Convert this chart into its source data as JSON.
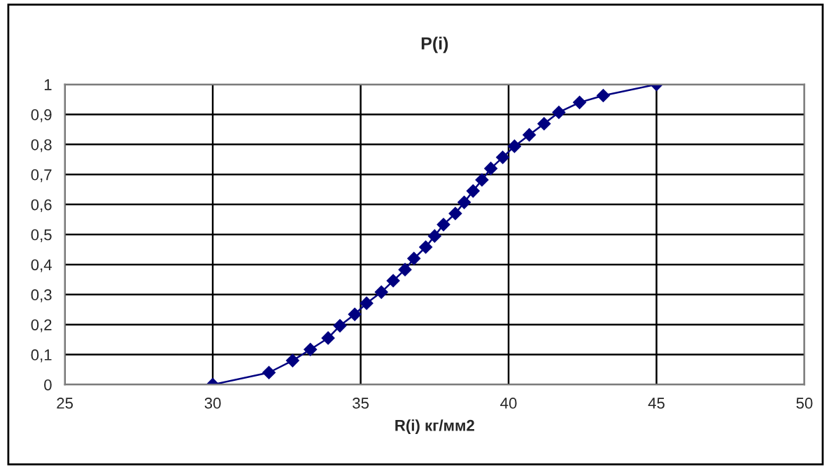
{
  "chart_data": {
    "type": "line",
    "title": "P(i)",
    "xlabel": "R(i) кг/мм2",
    "series": [
      {
        "color": "#000080",
        "x": [
          30,
          31.9,
          32.7,
          33.3,
          33.9,
          34.3,
          34.8,
          35.2,
          35.7,
          36.1,
          36.5,
          36.8,
          37.2,
          37.5,
          37.8,
          38.2,
          38.5,
          38.8,
          39.1,
          39.4,
          39.8,
          40.2,
          40.7,
          41.2,
          41.7,
          42.4,
          43.2,
          45
        ],
        "values": [
          0,
          0.04,
          0.08,
          0.117,
          0.155,
          0.196,
          0.234,
          0.271,
          0.308,
          0.346,
          0.383,
          0.42,
          0.458,
          0.495,
          0.533,
          0.57,
          0.607,
          0.645,
          0.682,
          0.72,
          0.757,
          0.794,
          0.832,
          0.869,
          0.907,
          0.94,
          0.963,
          1
        ]
      }
    ],
    "xlim": [
      25,
      50
    ],
    "xticks": [
      25,
      30,
      35,
      40,
      45,
      50
    ],
    "ylim": [
      0,
      1
    ],
    "yticks": [
      {
        "value": 0,
        "label": "0"
      },
      {
        "value": 0.1,
        "label": "0,1"
      },
      {
        "value": 0.2,
        "label": "0,2"
      },
      {
        "value": 0.3,
        "label": "0,3"
      },
      {
        "value": 0.4,
        "label": "0,4"
      },
      {
        "value": 0.5,
        "label": "0,5"
      },
      {
        "value": 0.6,
        "label": "0,6"
      },
      {
        "value": 0.7,
        "label": "0,7"
      },
      {
        "value": 0.8,
        "label": "0,8"
      },
      {
        "value": 0.9,
        "label": "0,9"
      },
      {
        "value": 1,
        "label": "1"
      }
    ],
    "grid": true,
    "marker": "diamond",
    "line_style": "solid",
    "legend": false
  }
}
